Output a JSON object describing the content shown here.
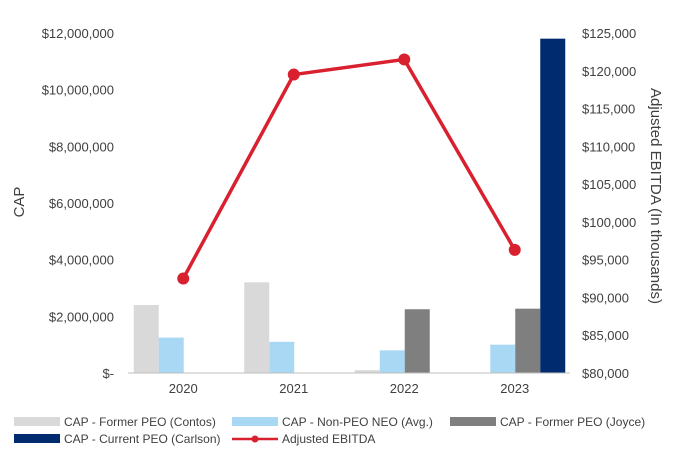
{
  "chart_data": {
    "type": "bar",
    "categories": [
      "2020",
      "2021",
      "2022",
      "2023"
    ],
    "ylabel": "CAP",
    "y2label": "Adjusted EBITDA (In thousands)",
    "ylim": [
      0,
      12000000
    ],
    "y2lim": [
      80000,
      125000
    ],
    "y_ticks": [
      "$-",
      "$2,000,000",
      "$4,000,000",
      "$6,000,000",
      "$8,000,000",
      "$10,000,000",
      "$12,000,000"
    ],
    "y2_ticks": [
      "$80,000",
      "$85,000",
      "$90,000",
      "$95,000",
      "$100,000",
      "$105,000",
      "$110,000",
      "$115,000",
      "$120,000",
      "$125,000"
    ],
    "series": [
      {
        "name": "CAP - Former PEO (Contos)",
        "kind": "bar",
        "color": "#d9d9d9",
        "values": [
          2400000,
          3200000,
          100000,
          0
        ]
      },
      {
        "name": "CAP - Non-PEO NEO (Avg.)",
        "kind": "bar",
        "color": "#a9d8f5",
        "values": [
          1250000,
          1100000,
          800000,
          1000000
        ]
      },
      {
        "name": "CAP - Former PEO (Joyce)",
        "kind": "bar",
        "color": "#7f7f7f",
        "values": [
          0,
          0,
          2250000,
          2270000
        ]
      },
      {
        "name": "CAP - Current PEO (Carlson)",
        "kind": "bar",
        "color": "#002b6e",
        "values": [
          0,
          0,
          0,
          11800000
        ]
      },
      {
        "name": "Adjusted EBITDA",
        "kind": "line",
        "axis": "right",
        "color": "#d9202f",
        "values": [
          92500,
          119500,
          121500,
          96300
        ]
      }
    ]
  }
}
